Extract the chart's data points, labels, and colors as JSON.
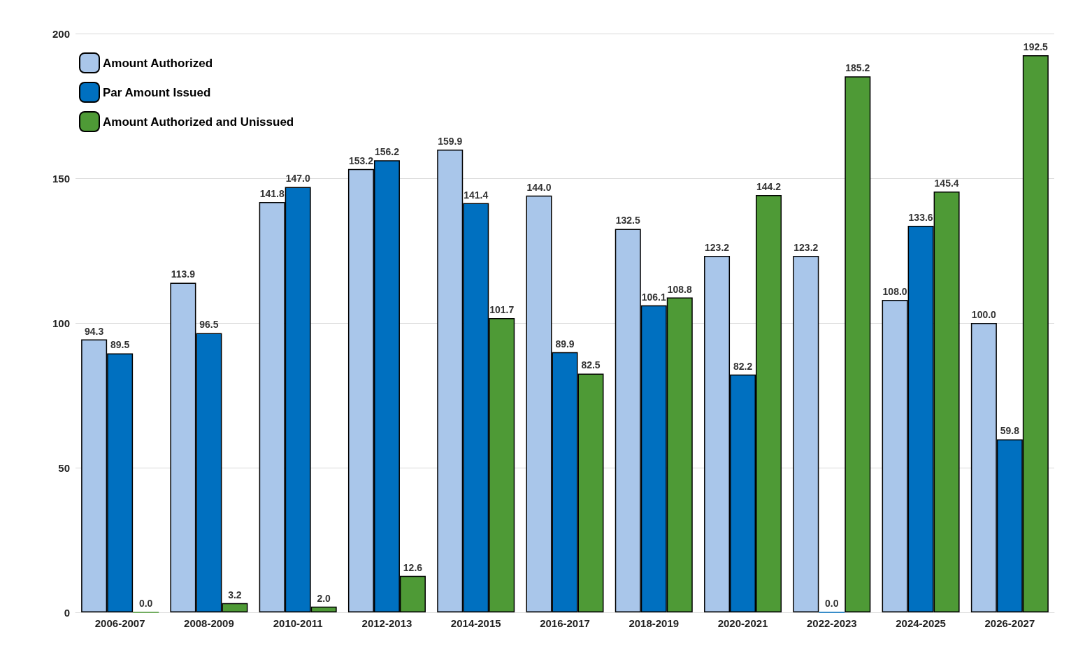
{
  "chart_data": {
    "type": "bar",
    "categories": [
      "2006-2007",
      "2008-2009",
      "2010-2011",
      "2012-2013",
      "2014-2015",
      "2016-2017",
      "2018-2019",
      "2020-2021",
      "2022-2023",
      "2024-2025",
      "2026-2027"
    ],
    "series": [
      {
        "name": "Amount Authorized",
        "color": "#a9c6ea",
        "values": [
          94.3,
          113.9,
          141.8,
          153.2,
          159.9,
          144.0,
          132.5,
          123.2,
          123.2,
          108.0,
          100.0
        ],
        "value_labels": [
          "94.3",
          "113.9",
          "141.8",
          "153.2",
          "159.9",
          "144.0",
          "132.5",
          "123.2",
          "123.2",
          "108.0",
          "100.0"
        ]
      },
      {
        "name": "Par Amount Issued",
        "color": "#0070c0",
        "values": [
          89.5,
          96.5,
          147.0,
          156.2,
          141.4,
          89.9,
          106.1,
          82.2,
          0.0,
          133.6,
          59.8
        ],
        "value_labels": [
          "89.5",
          "96.5",
          "147.0",
          "156.2",
          "141.4",
          "89.9",
          "106.1",
          "82.2",
          "0.0",
          "133.6",
          "59.8"
        ]
      },
      {
        "name": "Amount Authorized and Unissued",
        "color": "#4e9a36",
        "values": [
          0.0,
          3.2,
          2.0,
          12.6,
          101.7,
          82.5,
          108.8,
          144.2,
          185.2,
          145.4,
          192.5
        ],
        "value_labels": [
          "0.0",
          "3.2",
          "2.0",
          "12.6",
          "101.7",
          "82.5",
          "108.8",
          "144.2",
          "185.2",
          "145.4",
          "192.5"
        ]
      }
    ],
    "ylim": [
      0,
      200
    ],
    "yticks": [
      0,
      50,
      100,
      150,
      200
    ],
    "grid": "y",
    "legend": "top left"
  }
}
